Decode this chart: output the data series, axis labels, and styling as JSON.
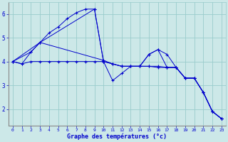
{
  "xlabel": "Graphe des températures (°c)",
  "bg_color": "#cce8e8",
  "grid_color": "#99cccc",
  "line_color": "#0000cc",
  "xlim": [
    -0.5,
    23.5
  ],
  "ylim": [
    1.3,
    6.5
  ],
  "yticks": [
    2,
    3,
    4,
    5,
    6
  ],
  "xticks": [
    0,
    1,
    2,
    3,
    4,
    5,
    6,
    7,
    8,
    9,
    10,
    11,
    12,
    13,
    14,
    15,
    16,
    17,
    18,
    19,
    20,
    21,
    22,
    23
  ],
  "lines": [
    {
      "x": [
        0,
        1,
        2,
        3,
        4,
        5,
        6,
        7,
        8,
        9,
        10,
        11,
        12,
        13,
        14,
        15,
        16,
        17,
        18,
        19,
        20,
        21,
        22,
        23
      ],
      "y": [
        4.0,
        3.9,
        4.4,
        4.8,
        5.2,
        5.45,
        5.8,
        6.05,
        6.2,
        6.2,
        4.0,
        3.2,
        3.5,
        3.8,
        3.8,
        4.3,
        4.5,
        4.3,
        3.75,
        3.3,
        3.3,
        2.7,
        1.9,
        1.6
      ]
    },
    {
      "x": [
        0,
        3,
        9,
        10,
        11,
        12,
        13,
        14,
        15,
        16,
        17,
        18,
        19,
        20,
        21,
        22,
        23
      ],
      "y": [
        4.0,
        4.8,
        6.2,
        4.0,
        3.9,
        3.8,
        3.8,
        3.8,
        3.8,
        3.75,
        3.75,
        3.75,
        3.3,
        3.3,
        2.7,
        1.9,
        1.6
      ]
    },
    {
      "x": [
        0,
        1,
        2,
        3,
        4,
        5,
        6,
        7,
        8,
        9,
        10,
        11,
        12,
        13,
        14,
        15,
        16,
        17,
        18,
        19,
        20,
        21,
        22,
        23
      ],
      "y": [
        4.0,
        3.9,
        4.0,
        4.0,
        4.0,
        4.0,
        4.0,
        4.0,
        4.0,
        4.0,
        4.0,
        3.9,
        3.8,
        3.8,
        3.8,
        3.8,
        3.8,
        3.75,
        3.75,
        3.3,
        3.3,
        2.7,
        1.9,
        1.6
      ]
    },
    {
      "x": [
        0,
        2,
        3,
        10,
        11,
        12,
        13,
        14,
        15,
        16,
        17,
        18,
        19,
        20,
        21,
        22,
        23
      ],
      "y": [
        4.0,
        4.4,
        4.8,
        4.05,
        3.9,
        3.8,
        3.8,
        3.8,
        4.3,
        4.5,
        3.75,
        3.75,
        3.3,
        3.3,
        2.7,
        1.9,
        1.6
      ]
    }
  ]
}
